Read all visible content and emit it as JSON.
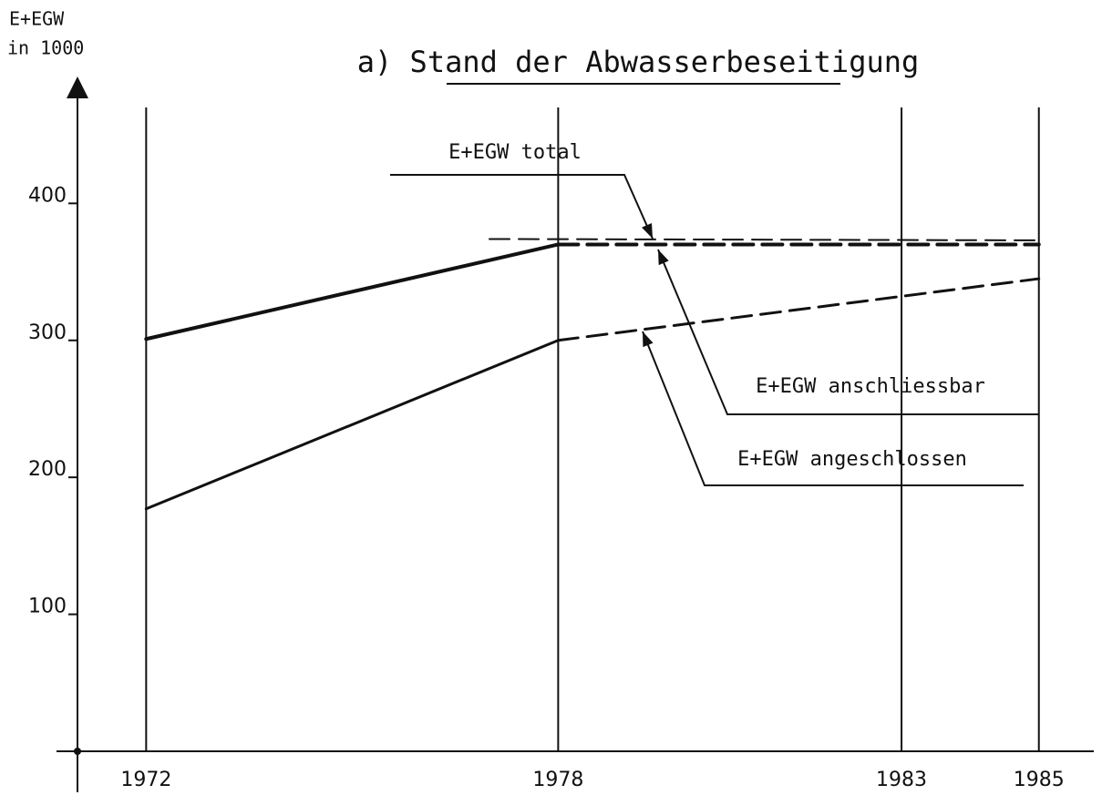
{
  "chart_data": {
    "type": "line",
    "title": "a) Stand der Abwasserbeseitigung",
    "ylabel": [
      "E+EGW",
      "in 1000"
    ],
    "xlim": [
      1971,
      1985.8
    ],
    "xticks": [
      1972,
      1978,
      1983,
      1985
    ],
    "ylim": [
      0,
      480
    ],
    "yticks": [
      100,
      200,
      300,
      400
    ],
    "grid": true,
    "color": "#111111",
    "series": [
      {
        "name": "E+EGW total",
        "x": [
          1977,
          1985
        ],
        "values": [
          374,
          373
        ],
        "dashed_from": 1977
      },
      {
        "name": "E+EGW anschliessbar",
        "x": [
          1972,
          1978,
          1985
        ],
        "values": [
          301,
          370,
          370
        ],
        "dashed_from": 1978
      },
      {
        "name": "E+EGW angeschlossen",
        "x": [
          1972,
          1978,
          1985
        ],
        "values": [
          177,
          300,
          345
        ],
        "dashed_from": 1978
      }
    ]
  }
}
